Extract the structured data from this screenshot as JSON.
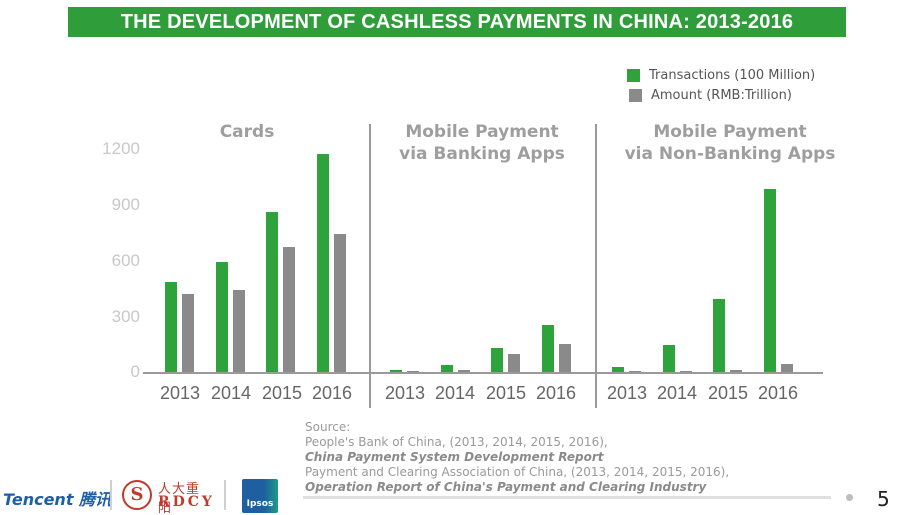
{
  "header": {
    "title": "THE DEVELOPMENT OF CASHLESS PAYMENTS IN CHINA: 2013-2016"
  },
  "legend": [
    {
      "label": "Transactions (100 Million)",
      "color": "#2fa33b"
    },
    {
      "label": "Amount (RMB:Trillion)",
      "color": "#8a8a8a"
    }
  ],
  "y_axis": {
    "ticks": [
      "1200",
      "900",
      "600",
      "300",
      "0"
    ]
  },
  "panels": [
    {
      "title_line1": "Cards",
      "title_line2": "",
      "years": [
        "2013",
        "2014",
        "2015",
        "2016"
      ]
    },
    {
      "title_line1": "Mobile Payment",
      "title_line2": "via Banking Apps",
      "years": [
        "2013",
        "2014",
        "2015",
        "2016"
      ]
    },
    {
      "title_line1": "Mobile Payment",
      "title_line2": "via Non-Banking Apps",
      "years": [
        "2013",
        "2014",
        "2015",
        "2016"
      ]
    }
  ],
  "chart_data": {
    "type": "bar",
    "title": "THE DEVELOPMENT OF CASHLESS PAYMENTS IN CHINA: 2013-2016",
    "xlabel": "",
    "ylabel": "",
    "ylim": [
      0,
      1200
    ],
    "yticks": [
      0,
      300,
      600,
      900,
      1200
    ],
    "grid": false,
    "legend_position": "top-right",
    "groups": [
      {
        "name": "Cards",
        "categories": [
          "2013",
          "2014",
          "2015",
          "2016"
        ],
        "series": [
          {
            "name": "Transactions (100 Million)",
            "values": [
              483,
              590,
              858,
              1167
            ]
          },
          {
            "name": "Amount (RMB:Trillion)",
            "values": [
              418,
              440,
              670,
              740
            ]
          }
        ]
      },
      {
        "name": "Mobile Payment via Banking Apps",
        "categories": [
          "2013",
          "2014",
          "2015",
          "2016"
        ],
        "series": [
          {
            "name": "Transactions (100 Million)",
            "values": [
              12,
              38,
              128,
              252
            ]
          },
          {
            "name": "Amount (RMB:Trillion)",
            "values": [
              2,
              10,
              96,
              150
            ]
          }
        ]
      },
      {
        "name": "Mobile Payment via Non-Banking Apps",
        "categories": [
          "2013",
          "2014",
          "2015",
          "2016"
        ],
        "series": [
          {
            "name": "Transactions (100 Million)",
            "values": [
              27,
              145,
              391,
              980
            ]
          },
          {
            "name": "Amount (RMB:Trillion)",
            "values": [
              1,
              1,
              12,
              43
            ]
          }
        ]
      }
    ]
  },
  "source": {
    "label": "Source:",
    "line1": "People's Bank of China, (2013, 2014, 2015, 2016),",
    "line2": "China Payment System Development Report",
    "line3": "Payment and Clearing Association of China, (2013, 2014, 2015, 2016),",
    "line4": "Operation Report of China's Payment and Clearing Industry"
  },
  "footer": {
    "tencent_logo": "Tencent 腾讯",
    "rdcy_logo_cn": "人大重阳",
    "rdcy_logo_en": "RDCY",
    "rdcy_mark": "S",
    "ipsos_logo": "Ipsos",
    "page_number": "5"
  }
}
